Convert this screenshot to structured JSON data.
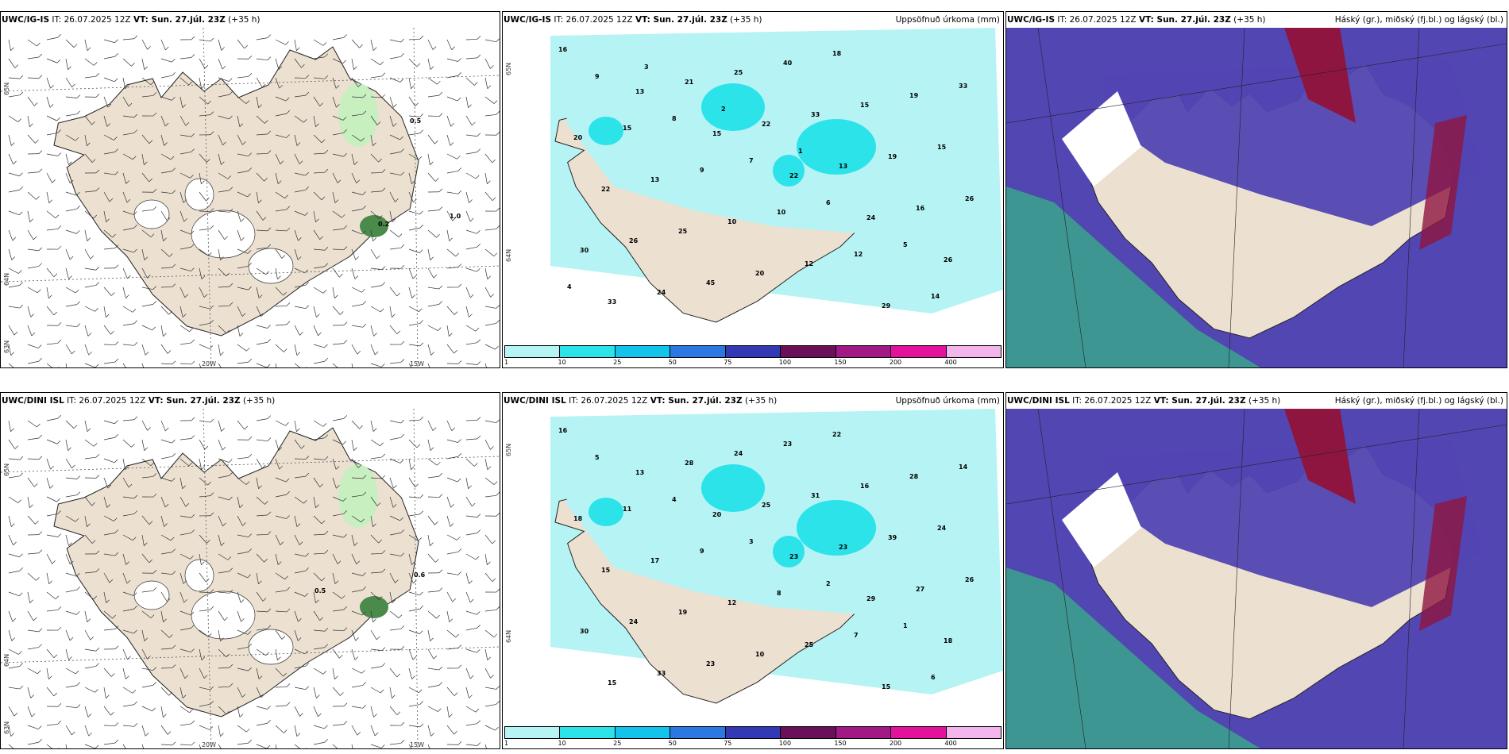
{
  "colors": {
    "land": "#ece0d1",
    "sea_white": "#ffffff",
    "precip_light": "#b6f3f4",
    "precip_mid": "#2be3e9",
    "cloud_mid": "#5246b3",
    "cloud_high": "#8e1540",
    "cloud_low": "#3aa58b",
    "green_light": "#c8efc0",
    "green_dark": "#4a8a4a"
  },
  "rows": [
    {
      "model": "UWC/IG-IS",
      "panels": {
        "wind": {
          "it_label": "IT: 26.07.2025 12Z",
          "vt_bold": "VT: Sun. 27.júl. 23Z",
          "lead": "(+35 h)",
          "lat_labels": [
            "65N",
            "64N",
            "63N"
          ],
          "lon_labels": [
            "20W",
            "15W"
          ],
          "values": [
            "0.5",
            "1.0",
            "0.2"
          ]
        },
        "precip": {
          "it_label": "IT: 26.07.2025 12Z",
          "vt_bold": "VT: Sun. 27.júl. 23Z",
          "lead": "(+35 h)",
          "title": "Uppsöfnuð úrkoma (mm)",
          "lat_labels": [
            "65N",
            "64N"
          ],
          "values": [
            "16",
            "13",
            "15",
            "22",
            "24",
            "26",
            "33",
            "21",
            "22",
            "13",
            "16",
            "30",
            "24",
            "25",
            "33",
            "19",
            "26",
            "26",
            "45",
            "40",
            "15",
            "15",
            "22",
            "25",
            "20",
            "18",
            "19",
            "20",
            "13",
            "10",
            "12",
            "29",
            "33",
            "15",
            "9",
            "10",
            "12",
            "14",
            "9",
            "8",
            "7",
            "6",
            "5",
            "4",
            "3",
            "2",
            "1"
          ]
        },
        "cloud": {
          "it_label": "IT: 26.07.2025 12Z",
          "vt_bold": "VT: Sun. 27.júl. 23Z",
          "lead": "(+35 h)",
          "title": "Háský (gr.), miðský (fj.bl.) og lágský (bl.)"
        }
      }
    },
    {
      "model": "UWC/DINI ISL",
      "panels": {
        "wind": {
          "it_label": "IT: 26.07.2025 12Z",
          "vt_bold": "VT: Sun. 27.júl. 23Z",
          "lead": "(+35 h)",
          "lat_labels": [
            "65N",
            "64N",
            "63N"
          ],
          "lon_labels": [
            "20W",
            "15W"
          ],
          "values": [
            "0.5",
            "0.6"
          ]
        },
        "precip": {
          "it_label": "IT: 26.07.2025 12Z",
          "vt_bold": "VT: Sun. 27.júl. 23Z",
          "lead": "(+35 h)",
          "title": "Uppsöfnuð úrkoma (mm)",
          "lat_labels": [
            "65N",
            "64N"
          ],
          "values": [
            "16",
            "13",
            "20",
            "23",
            "29",
            "18",
            "15",
            "28",
            "25",
            "23",
            "27",
            "30",
            "33",
            "24",
            "31",
            "39",
            "26",
            "24",
            "23",
            "23",
            "16",
            "24",
            "15",
            "19",
            "10",
            "22",
            "28",
            "18",
            "17",
            "12",
            "25",
            "15",
            "14",
            "11",
            "9",
            "8",
            "7",
            "6",
            "5",
            "4",
            "3",
            "2",
            "1"
          ]
        },
        "cloud": {
          "it_label": "IT: 26.07.2025 12Z",
          "vt_bold": "VT: Sun. 27.júl. 23Z",
          "lead": "(+35 h)",
          "title": "Háský (gr.), miðský (fj.bl.) og lágský (bl.)"
        }
      }
    }
  ],
  "legend": {
    "ticks": [
      "1",
      "10",
      "25",
      "50",
      "75",
      "100",
      "150",
      "200",
      "400"
    ],
    "colors": [
      "#b6f3f4",
      "#2be3e9",
      "#12c3ec",
      "#2c78e3",
      "#3338b4",
      "#6a0f5a",
      "#a21887",
      "#e4119d",
      "#f2b6ec"
    ]
  }
}
